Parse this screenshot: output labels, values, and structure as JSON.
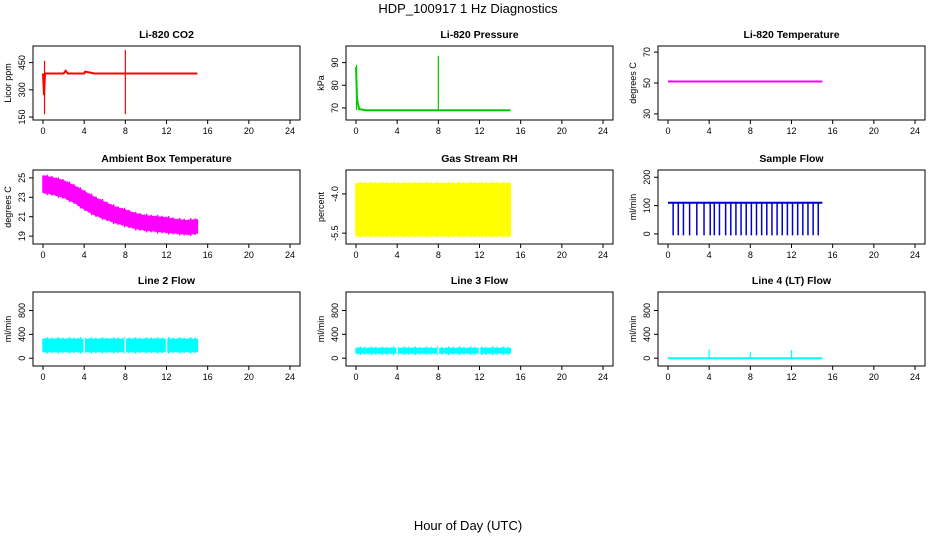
{
  "figure": {
    "title": "HDP_100917  1 Hz Diagnostics",
    "xlabel": "Hour of Day (UTC)"
  },
  "chart_data": [
    {
      "type": "line",
      "title": "Li-820 CO2",
      "ylabel": "Licor ppm",
      "color": "#ff0000",
      "xlim": [
        0,
        24
      ],
      "xticks": [
        "0",
        "4",
        "8",
        "12",
        "16",
        "20",
        "24"
      ],
      "ylim": [
        150,
        525
      ],
      "yticks": [
        {
          "v": 150,
          "label": "150"
        },
        {
          "v": 300,
          "label": "300"
        },
        {
          "v": 450,
          "label": "450"
        }
      ],
      "x": [
        0,
        0.1,
        0.2,
        1,
        2,
        2.2,
        2.4,
        3,
        4,
        4.1,
        5,
        6,
        7,
        8,
        8.05,
        9,
        10,
        11,
        12,
        13,
        14,
        15
      ],
      "y": [
        390,
        270,
        390,
        390,
        390,
        405,
        390,
        390,
        390,
        400,
        390,
        390,
        390,
        390,
        390,
        390,
        390,
        390,
        390,
        390,
        390,
        390
      ],
      "spikes": [
        {
          "x": 0.15,
          "y1": 165,
          "y2": 460
        },
        {
          "x": 8,
          "y1": 165,
          "y2": 520
        }
      ]
    },
    {
      "type": "line",
      "title": "Li-820 Pressure",
      "ylabel": "kPa",
      "color": "#00cc00",
      "xlim": [
        0,
        24
      ],
      "xticks": [
        "0",
        "4",
        "8",
        "12",
        "16",
        "20",
        "24"
      ],
      "ylim": [
        66,
        96
      ],
      "yticks": [
        {
          "v": 70,
          "label": "70"
        },
        {
          "v": 80,
          "label": "80"
        },
        {
          "v": 90,
          "label": "90"
        }
      ],
      "x": [
        0,
        0.1,
        0.3,
        1,
        2,
        4,
        6,
        8,
        10,
        12,
        14,
        15
      ],
      "y": [
        88,
        74,
        69.5,
        69,
        69,
        69,
        69,
        69,
        69,
        69,
        69,
        69
      ],
      "spikes": [
        {
          "x": 0.05,
          "y1": 69,
          "y2": 89
        },
        {
          "x": 8,
          "y1": 69,
          "y2": 93
        }
      ]
    },
    {
      "type": "line",
      "title": "Li-820 Temperature",
      "ylabel": "degrees C",
      "color": "#ff00ff",
      "xlim": [
        0,
        24
      ],
      "xticks": [
        "0",
        "4",
        "8",
        "12",
        "16",
        "20",
        "24"
      ],
      "ylim": [
        28,
        72
      ],
      "yticks": [
        {
          "v": 30,
          "label": "30"
        },
        {
          "v": 50,
          "label": "50"
        },
        {
          "v": 70,
          "label": "70"
        }
      ],
      "x": [
        0,
        15
      ],
      "y": [
        51,
        51
      ],
      "spikes": []
    },
    {
      "type": "area",
      "title": "Ambient Box Temperature",
      "ylabel": "degrees C",
      "color": "#ff00ff",
      "xlim": [
        0,
        24
      ],
      "xticks": [
        "0",
        "4",
        "8",
        "12",
        "16",
        "20",
        "24"
      ],
      "ylim": [
        18.5,
        25.5
      ],
      "yticks": [
        {
          "v": 19,
          "label": "19"
        },
        {
          "v": 21,
          "label": "21"
        },
        {
          "v": 23,
          "label": "23"
        },
        {
          "v": 25,
          "label": "25"
        }
      ],
      "x": [
        0,
        1,
        2,
        3,
        4,
        5,
        6,
        7,
        8,
        9,
        10,
        11,
        12,
        13,
        14,
        15
      ],
      "upper": [
        25.2,
        25.0,
        24.7,
        24.2,
        23.6,
        23.0,
        22.5,
        22.0,
        21.7,
        21.3,
        21.1,
        21.0,
        20.9,
        20.7,
        20.6,
        20.7
      ],
      "lower": [
        23.5,
        23.3,
        23.0,
        22.5,
        21.8,
        21.2,
        20.8,
        20.4,
        20.1,
        19.8,
        19.6,
        19.5,
        19.4,
        19.3,
        19.2,
        19.3
      ]
    },
    {
      "type": "area",
      "title": "Gas Stream RH",
      "ylabel": "percent",
      "color": "#ffff00",
      "xlim": [
        0,
        24
      ],
      "xticks": [
        "0",
        "4",
        "8",
        "12",
        "16",
        "20",
        "24"
      ],
      "ylim": [
        -5.8,
        -3.2
      ],
      "yticks": [
        {
          "v": -5.5,
          "label": "-5.5"
        },
        {
          "v": -4.0,
          "label": "-4.0"
        }
      ],
      "x": [
        0,
        15
      ],
      "upper": [
        -3.6,
        -3.6
      ],
      "lower": [
        -5.6,
        -5.6
      ]
    },
    {
      "type": "line",
      "title": "Sample Flow",
      "ylabel": "ml/min",
      "color": "#0000cc",
      "xlim": [
        0,
        24
      ],
      "xticks": [
        "0",
        "4",
        "8",
        "12",
        "16",
        "20",
        "24"
      ],
      "ylim": [
        -25,
        215
      ],
      "yticks": [
        {
          "v": 0,
          "label": "0"
        },
        {
          "v": 100,
          "label": "100"
        },
        {
          "v": 200,
          "label": "200"
        }
      ],
      "x": [
        0,
        15
      ],
      "y": [
        110,
        110
      ],
      "dips": [
        0.5,
        1,
        1.5,
        2.1,
        2.8,
        3.5,
        4.1,
        4.5,
        5,
        5.6,
        6.1,
        6.6,
        7.1,
        7.6,
        8.1,
        8.6,
        9.1,
        9.6,
        10.1,
        10.6,
        11.1,
        11.6,
        12.1,
        12.6,
        13.1,
        13.6,
        14.1,
        14.6
      ],
      "dip_value": -5
    },
    {
      "type": "area",
      "title": "Line 2 Flow",
      "ylabel": "ml/min",
      "color": "#00ffff",
      "xlim": [
        0,
        24
      ],
      "xticks": [
        "0",
        "4",
        "8",
        "12",
        "16",
        "20",
        "24"
      ],
      "ylim": [
        -80,
        1060
      ],
      "yticks": [
        {
          "v": 0,
          "label": "0"
        },
        {
          "v": 400,
          "label": "400"
        },
        {
          "v": 800,
          "label": "800"
        }
      ],
      "x": [
        0,
        15
      ],
      "upper": [
        320,
        320
      ],
      "lower": [
        110,
        110
      ],
      "gaps": [
        4,
        8,
        12
      ]
    },
    {
      "type": "area",
      "title": "Line 3 Flow",
      "ylabel": "ml/min",
      "color": "#00ffff",
      "xlim": [
        0,
        24
      ],
      "xticks": [
        "0",
        "4",
        "8",
        "12",
        "16",
        "20",
        "24"
      ],
      "ylim": [
        -80,
        1060
      ],
      "yticks": [
        {
          "v": 0,
          "label": "0"
        },
        {
          "v": 400,
          "label": "400"
        },
        {
          "v": 800,
          "label": "800"
        }
      ],
      "x": [
        0,
        15
      ],
      "upper": [
        165,
        165
      ],
      "lower": [
        85,
        85
      ],
      "gaps": [
        4,
        8,
        12
      ]
    },
    {
      "type": "line",
      "title": "Line 4 (LT) Flow",
      "ylabel": "ml/min",
      "color": "#00ffff",
      "xlim": [
        0,
        24
      ],
      "xticks": [
        "0",
        "4",
        "8",
        "12",
        "16",
        "20",
        "24"
      ],
      "ylim": [
        -80,
        1060
      ],
      "yticks": [
        {
          "v": 0,
          "label": "0"
        },
        {
          "v": 400,
          "label": "400"
        },
        {
          "v": 800,
          "label": "800"
        }
      ],
      "x": [
        0,
        15
      ],
      "y": [
        0,
        0
      ],
      "spikes": [
        {
          "x": 4,
          "y1": 0,
          "y2": 150
        },
        {
          "x": 8,
          "y1": 0,
          "y2": 100
        },
        {
          "x": 12,
          "y1": 0,
          "y2": 140
        }
      ]
    }
  ]
}
